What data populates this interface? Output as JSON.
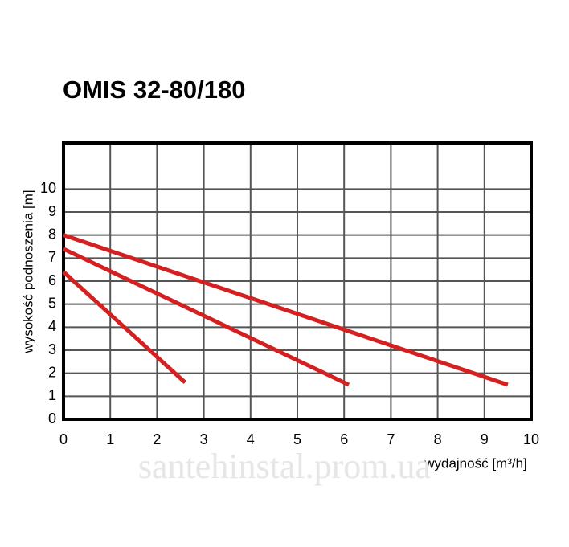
{
  "chart_data": {
    "type": "line",
    "title": "OMIS 32-80/180",
    "x_label": "wydajność [m³/h]",
    "y_label": "wysokość podnoszenia [m]",
    "watermark": "santehinstal.prom.ua",
    "xlim": [
      0,
      10
    ],
    "ylim": [
      0,
      12
    ],
    "xticks": [
      0,
      1,
      2,
      3,
      4,
      5,
      6,
      7,
      8,
      9,
      10
    ],
    "yticks": [
      0,
      1,
      2,
      3,
      4,
      5,
      6,
      7,
      8,
      9,
      10
    ],
    "grid": true,
    "series": [
      {
        "color": "#d42020",
        "x": [
          0,
          9.5
        ],
        "values": [
          8.0,
          1.5
        ]
      },
      {
        "color": "#d42020",
        "x": [
          0,
          6.1
        ],
        "values": [
          7.4,
          1.5
        ]
      },
      {
        "color": "#d42020",
        "x": [
          0,
          2.6
        ],
        "values": [
          6.4,
          1.6
        ]
      }
    ]
  }
}
